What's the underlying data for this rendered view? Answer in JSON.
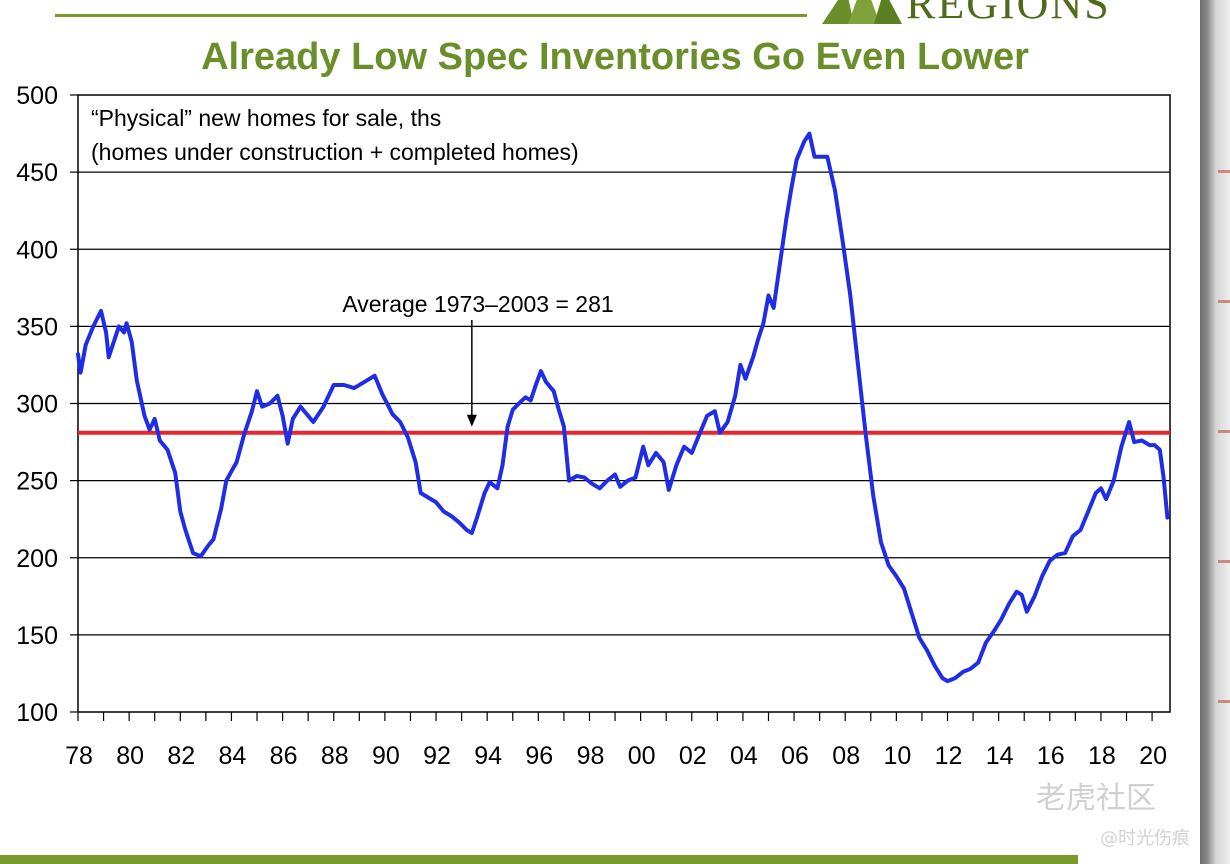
{
  "brand": {
    "name": "REGIONS"
  },
  "watermark": {
    "primary": "老虎社区",
    "secondary": "@时光伤痕"
  },
  "colors": {
    "title": "#6a8f2a",
    "series": "#1f2ee6",
    "average": "#e8262a",
    "rule": "#7a9a2e"
  },
  "chart_data": {
    "type": "line",
    "title": "Already Low Spec Inventories Go Even Lower",
    "subtitle_lines": [
      "“Physical” new homes for sale, ths",
      "(homes under construction + completed homes)"
    ],
    "xlabel": "",
    "ylabel": "",
    "ylim": [
      100,
      500
    ],
    "yticks": [
      100,
      150,
      200,
      250,
      300,
      350,
      400,
      450,
      500
    ],
    "xlim": [
      1978.0,
      2020.7
    ],
    "xtick_labels": [
      "78",
      "80",
      "82",
      "84",
      "86",
      "88",
      "90",
      "92",
      "94",
      "96",
      "98",
      "00",
      "02",
      "04",
      "06",
      "08",
      "10",
      "12",
      "14",
      "16",
      "18",
      "20"
    ],
    "grid": "horizontal",
    "average_line": {
      "value": 281,
      "label": "Average 1973–2003 = 281",
      "arrow_x": 1993.4
    },
    "series": [
      {
        "values": [
          [
            1978.0,
            332
          ],
          [
            1978.1,
            320
          ],
          [
            1978.3,
            338
          ],
          [
            1978.6,
            350
          ],
          [
            1978.9,
            360
          ],
          [
            1979.1,
            346
          ],
          [
            1979.2,
            330
          ],
          [
            1979.4,
            340
          ],
          [
            1979.6,
            350
          ],
          [
            1979.8,
            346
          ],
          [
            1979.9,
            352
          ],
          [
            1980.1,
            340
          ],
          [
            1980.3,
            315
          ],
          [
            1980.6,
            292
          ],
          [
            1980.8,
            283
          ],
          [
            1981.0,
            290
          ],
          [
            1981.2,
            276
          ],
          [
            1981.5,
            270
          ],
          [
            1981.8,
            255
          ],
          [
            1982.0,
            230
          ],
          [
            1982.2,
            218
          ],
          [
            1982.5,
            203
          ],
          [
            1982.8,
            201
          ],
          [
            1983.1,
            208
          ],
          [
            1983.3,
            212
          ],
          [
            1983.6,
            232
          ],
          [
            1983.8,
            250
          ],
          [
            1984.0,
            256
          ],
          [
            1984.2,
            262
          ],
          [
            1984.5,
            280
          ],
          [
            1984.8,
            295
          ],
          [
            1985.0,
            308
          ],
          [
            1985.2,
            298
          ],
          [
            1985.5,
            300
          ],
          [
            1985.8,
            305
          ],
          [
            1986.0,
            292
          ],
          [
            1986.2,
            274
          ],
          [
            1986.4,
            290
          ],
          [
            1986.7,
            298
          ],
          [
            1987.0,
            292
          ],
          [
            1987.2,
            288
          ],
          [
            1987.6,
            298
          ],
          [
            1988.0,
            312
          ],
          [
            1988.4,
            312
          ],
          [
            1988.8,
            310
          ],
          [
            1989.2,
            314
          ],
          [
            1989.6,
            318
          ],
          [
            1989.9,
            306
          ],
          [
            1990.3,
            293
          ],
          [
            1990.6,
            288
          ],
          [
            1990.9,
            278
          ],
          [
            1991.2,
            262
          ],
          [
            1991.4,
            242
          ],
          [
            1991.7,
            239
          ],
          [
            1992.0,
            236
          ],
          [
            1992.3,
            230
          ],
          [
            1992.6,
            227
          ],
          [
            1992.9,
            223
          ],
          [
            1993.2,
            218
          ],
          [
            1993.4,
            216
          ],
          [
            1993.6,
            226
          ],
          [
            1993.9,
            242
          ],
          [
            1994.1,
            249
          ],
          [
            1994.4,
            245
          ],
          [
            1994.6,
            260
          ],
          [
            1994.8,
            285
          ],
          [
            1995.0,
            296
          ],
          [
            1995.3,
            301
          ],
          [
            1995.5,
            304
          ],
          [
            1995.7,
            302
          ],
          [
            1995.9,
            312
          ],
          [
            1996.1,
            321
          ],
          [
            1996.3,
            314
          ],
          [
            1996.6,
            308
          ],
          [
            1996.8,
            296
          ],
          [
            1997.0,
            285
          ],
          [
            1997.2,
            250
          ],
          [
            1997.5,
            253
          ],
          [
            1997.8,
            252
          ],
          [
            1998.1,
            248
          ],
          [
            1998.4,
            245
          ],
          [
            1998.7,
            250
          ],
          [
            1999.0,
            254
          ],
          [
            1999.2,
            246
          ],
          [
            1999.5,
            250
          ],
          [
            1999.8,
            252
          ],
          [
            2000.1,
            272
          ],
          [
            2000.3,
            260
          ],
          [
            2000.6,
            268
          ],
          [
            2000.9,
            262
          ],
          [
            2001.1,
            244
          ],
          [
            2001.4,
            260
          ],
          [
            2001.7,
            272
          ],
          [
            2002.0,
            268
          ],
          [
            2002.3,
            280
          ],
          [
            2002.6,
            292
          ],
          [
            2002.9,
            295
          ],
          [
            2003.1,
            281
          ],
          [
            2003.4,
            288
          ],
          [
            2003.7,
            305
          ],
          [
            2003.9,
            325
          ],
          [
            2004.1,
            316
          ],
          [
            2004.4,
            330
          ],
          [
            2004.6,
            342
          ],
          [
            2004.8,
            352
          ],
          [
            2005.0,
            370
          ],
          [
            2005.2,
            362
          ],
          [
            2005.4,
            385
          ],
          [
            2005.7,
            420
          ],
          [
            2005.9,
            440
          ],
          [
            2006.1,
            458
          ],
          [
            2006.4,
            470
          ],
          [
            2006.6,
            475
          ],
          [
            2006.8,
            460
          ],
          [
            2007.0,
            460
          ],
          [
            2007.3,
            460
          ],
          [
            2007.6,
            438
          ],
          [
            2007.9,
            405
          ],
          [
            2008.2,
            370
          ],
          [
            2008.5,
            325
          ],
          [
            2008.8,
            280
          ],
          [
            2009.1,
            240
          ],
          [
            2009.4,
            210
          ],
          [
            2009.7,
            195
          ],
          [
            2010.0,
            188
          ],
          [
            2010.3,
            180
          ],
          [
            2010.6,
            164
          ],
          [
            2010.9,
            148
          ],
          [
            2011.2,
            140
          ],
          [
            2011.5,
            130
          ],
          [
            2011.8,
            122
          ],
          [
            2012.0,
            120
          ],
          [
            2012.3,
            122
          ],
          [
            2012.6,
            126
          ],
          [
            2012.9,
            128
          ],
          [
            2013.2,
            132
          ],
          [
            2013.5,
            145
          ],
          [
            2013.8,
            152
          ],
          [
            2014.1,
            160
          ],
          [
            2014.4,
            170
          ],
          [
            2014.7,
            178
          ],
          [
            2014.9,
            176
          ],
          [
            2015.1,
            165
          ],
          [
            2015.4,
            175
          ],
          [
            2015.7,
            188
          ],
          [
            2016.0,
            198
          ],
          [
            2016.3,
            202
          ],
          [
            2016.6,
            203
          ],
          [
            2016.9,
            214
          ],
          [
            2017.2,
            218
          ],
          [
            2017.5,
            230
          ],
          [
            2017.8,
            242
          ],
          [
            2018.0,
            245
          ],
          [
            2018.2,
            238
          ],
          [
            2018.5,
            250
          ],
          [
            2018.8,
            272
          ],
          [
            2019.1,
            288
          ],
          [
            2019.3,
            275
          ],
          [
            2019.6,
            276
          ],
          [
            2019.9,
            273
          ],
          [
            2020.1,
            273
          ],
          [
            2020.3,
            270
          ],
          [
            2020.45,
            252
          ],
          [
            2020.6,
            226
          ]
        ]
      }
    ]
  }
}
